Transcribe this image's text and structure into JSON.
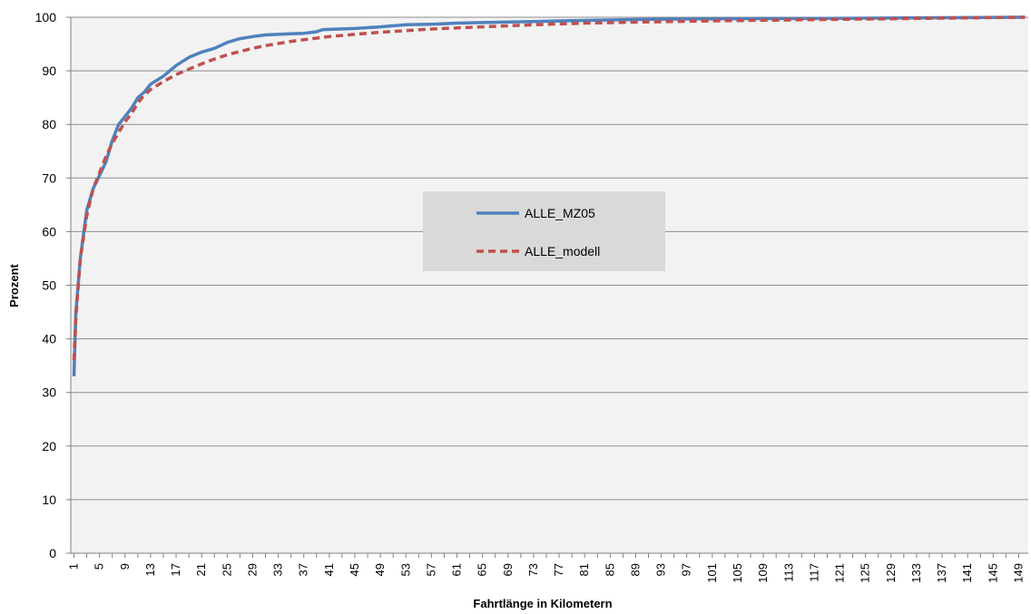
{
  "chart_data": {
    "type": "line",
    "title": "",
    "xlabel": "Fahrtlänge in Kilometern",
    "ylabel": "Prozent",
    "ylim": [
      0,
      100
    ],
    "yticks": [
      0,
      10,
      20,
      30,
      40,
      50,
      60,
      70,
      80,
      90,
      100
    ],
    "xlim": [
      1,
      150
    ],
    "xticks": [
      1,
      5,
      9,
      13,
      17,
      21,
      25,
      29,
      33,
      37,
      41,
      45,
      49,
      53,
      57,
      61,
      65,
      69,
      73,
      77,
      81,
      85,
      89,
      93,
      97,
      101,
      105,
      109,
      113,
      117,
      121,
      125,
      129,
      133,
      137,
      141,
      145,
      149
    ],
    "grid": "horizontal",
    "plot_background": "#f2f2f2",
    "legend_position": "center",
    "series": [
      {
        "name": "ALLE_MZ05",
        "color": "#4f81bd",
        "style": "solid",
        "x": [
          1,
          1.3,
          2,
          3,
          4,
          5,
          6,
          7,
          8,
          9,
          10,
          11,
          12,
          13,
          15,
          17,
          19,
          21,
          23,
          25,
          27,
          29,
          31,
          33,
          35,
          37,
          39,
          40,
          45,
          49,
          53,
          57,
          61,
          65,
          73,
          81,
          90,
          100,
          120,
          150
        ],
        "y": [
          33,
          45,
          55,
          64,
          68,
          70.5,
          73,
          77,
          80,
          81.5,
          83,
          85,
          86,
          87.5,
          89,
          91,
          92.5,
          93.5,
          94.2,
          95.3,
          96,
          96.4,
          96.7,
          96.8,
          96.9,
          97,
          97.3,
          97.7,
          97.9,
          98.2,
          98.6,
          98.7,
          98.9,
          99,
          99.2,
          99.4,
          99.6,
          99.7,
          99.8,
          100
        ]
      },
      {
        "name": "ALLE_modell",
        "color": "#c0504d",
        "style": "dashed",
        "x": [
          1,
          1.3,
          2,
          3,
          4,
          5,
          6,
          7,
          8,
          9,
          10,
          11,
          12,
          13,
          15,
          17,
          19,
          21,
          23,
          25,
          27,
          29,
          31,
          33,
          35,
          37,
          39,
          41,
          45,
          49,
          53,
          57,
          61,
          65,
          73,
          81,
          90,
          100,
          120,
          150
        ],
        "y": [
          36,
          44,
          55,
          63,
          68,
          71,
          74,
          76.5,
          78.5,
          80.5,
          82,
          84,
          85.5,
          86.5,
          88,
          89.3,
          90.3,
          91.3,
          92.2,
          93,
          93.6,
          94.2,
          94.7,
          95.1,
          95.5,
          95.8,
          96.1,
          96.4,
          96.8,
          97.2,
          97.5,
          97.8,
          98,
          98.2,
          98.6,
          98.9,
          99.1,
          99.3,
          99.6,
          100
        ]
      }
    ]
  }
}
